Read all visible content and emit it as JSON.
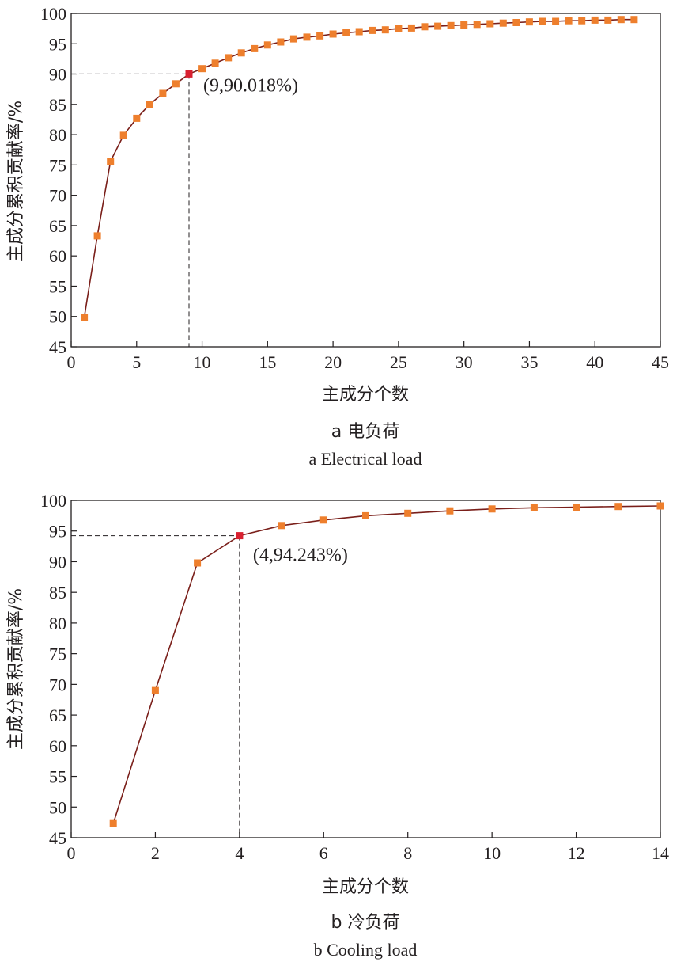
{
  "chart_data": [
    {
      "type": "line",
      "xlabel": "主成分个数",
      "ylabel": "主成分累积贡献率/%",
      "xlim": [
        0,
        45
      ],
      "ylim": [
        45,
        100
      ],
      "xticks": [
        "0",
        "5",
        "10",
        "15",
        "20",
        "25",
        "30",
        "35",
        "40",
        "45"
      ],
      "yticks": [
        "45",
        "50",
        "55",
        "60",
        "65",
        "70",
        "75",
        "80",
        "85",
        "90",
        "95",
        "100"
      ],
      "caption_cn": "a  电负荷",
      "caption_en": "a  Electrical load",
      "highlight": {
        "x": 9,
        "y": 90.018,
        "label": "(9,90.018%)"
      },
      "grid": false,
      "line_color": "#7a1f1a",
      "marker_color": "#ee7f2d",
      "highlight_color": "#d92030",
      "x": [
        1,
        2,
        3,
        4,
        5,
        6,
        7,
        8,
        9,
        10,
        11,
        12,
        13,
        14,
        15,
        16,
        17,
        18,
        19,
        20,
        21,
        22,
        23,
        24,
        25,
        26,
        27,
        28,
        29,
        30,
        31,
        32,
        33,
        34,
        35,
        36,
        37,
        38,
        39,
        40,
        41,
        42,
        43
      ],
      "y": [
        49.9,
        63.3,
        75.6,
        79.9,
        82.7,
        85.0,
        86.8,
        88.4,
        90.018,
        90.9,
        91.8,
        92.7,
        93.5,
        94.2,
        94.8,
        95.3,
        95.8,
        96.1,
        96.3,
        96.6,
        96.8,
        97.0,
        97.2,
        97.3,
        97.5,
        97.6,
        97.8,
        97.9,
        98.0,
        98.1,
        98.2,
        98.3,
        98.4,
        98.5,
        98.6,
        98.7,
        98.7,
        98.8,
        98.8,
        98.9,
        98.9,
        99.0,
        99.0
      ]
    },
    {
      "type": "line",
      "xlabel": "主成分个数",
      "ylabel": "主成分累积贡献率/%",
      "xlim": [
        0,
        14
      ],
      "ylim": [
        45,
        100
      ],
      "xticks": [
        "0",
        "2",
        "4",
        "6",
        "8",
        "10",
        "12",
        "14"
      ],
      "yticks": [
        "45",
        "50",
        "55",
        "60",
        "65",
        "70",
        "75",
        "80",
        "85",
        "90",
        "95",
        "100"
      ],
      "caption_cn": "b  冷负荷",
      "caption_en": "b  Cooling load",
      "highlight": {
        "x": 4,
        "y": 94.243,
        "label": "(4,94.243%)"
      },
      "grid": false,
      "line_color": "#7a1f1a",
      "marker_color": "#ee7f2d",
      "highlight_color": "#d92030",
      "x": [
        1,
        2,
        3,
        4,
        5,
        6,
        7,
        8,
        9,
        10,
        11,
        12,
        13,
        14
      ],
      "y": [
        47.3,
        69.0,
        89.8,
        94.243,
        95.9,
        96.8,
        97.5,
        97.9,
        98.3,
        98.6,
        98.8,
        98.9,
        99.0,
        99.1
      ]
    }
  ]
}
